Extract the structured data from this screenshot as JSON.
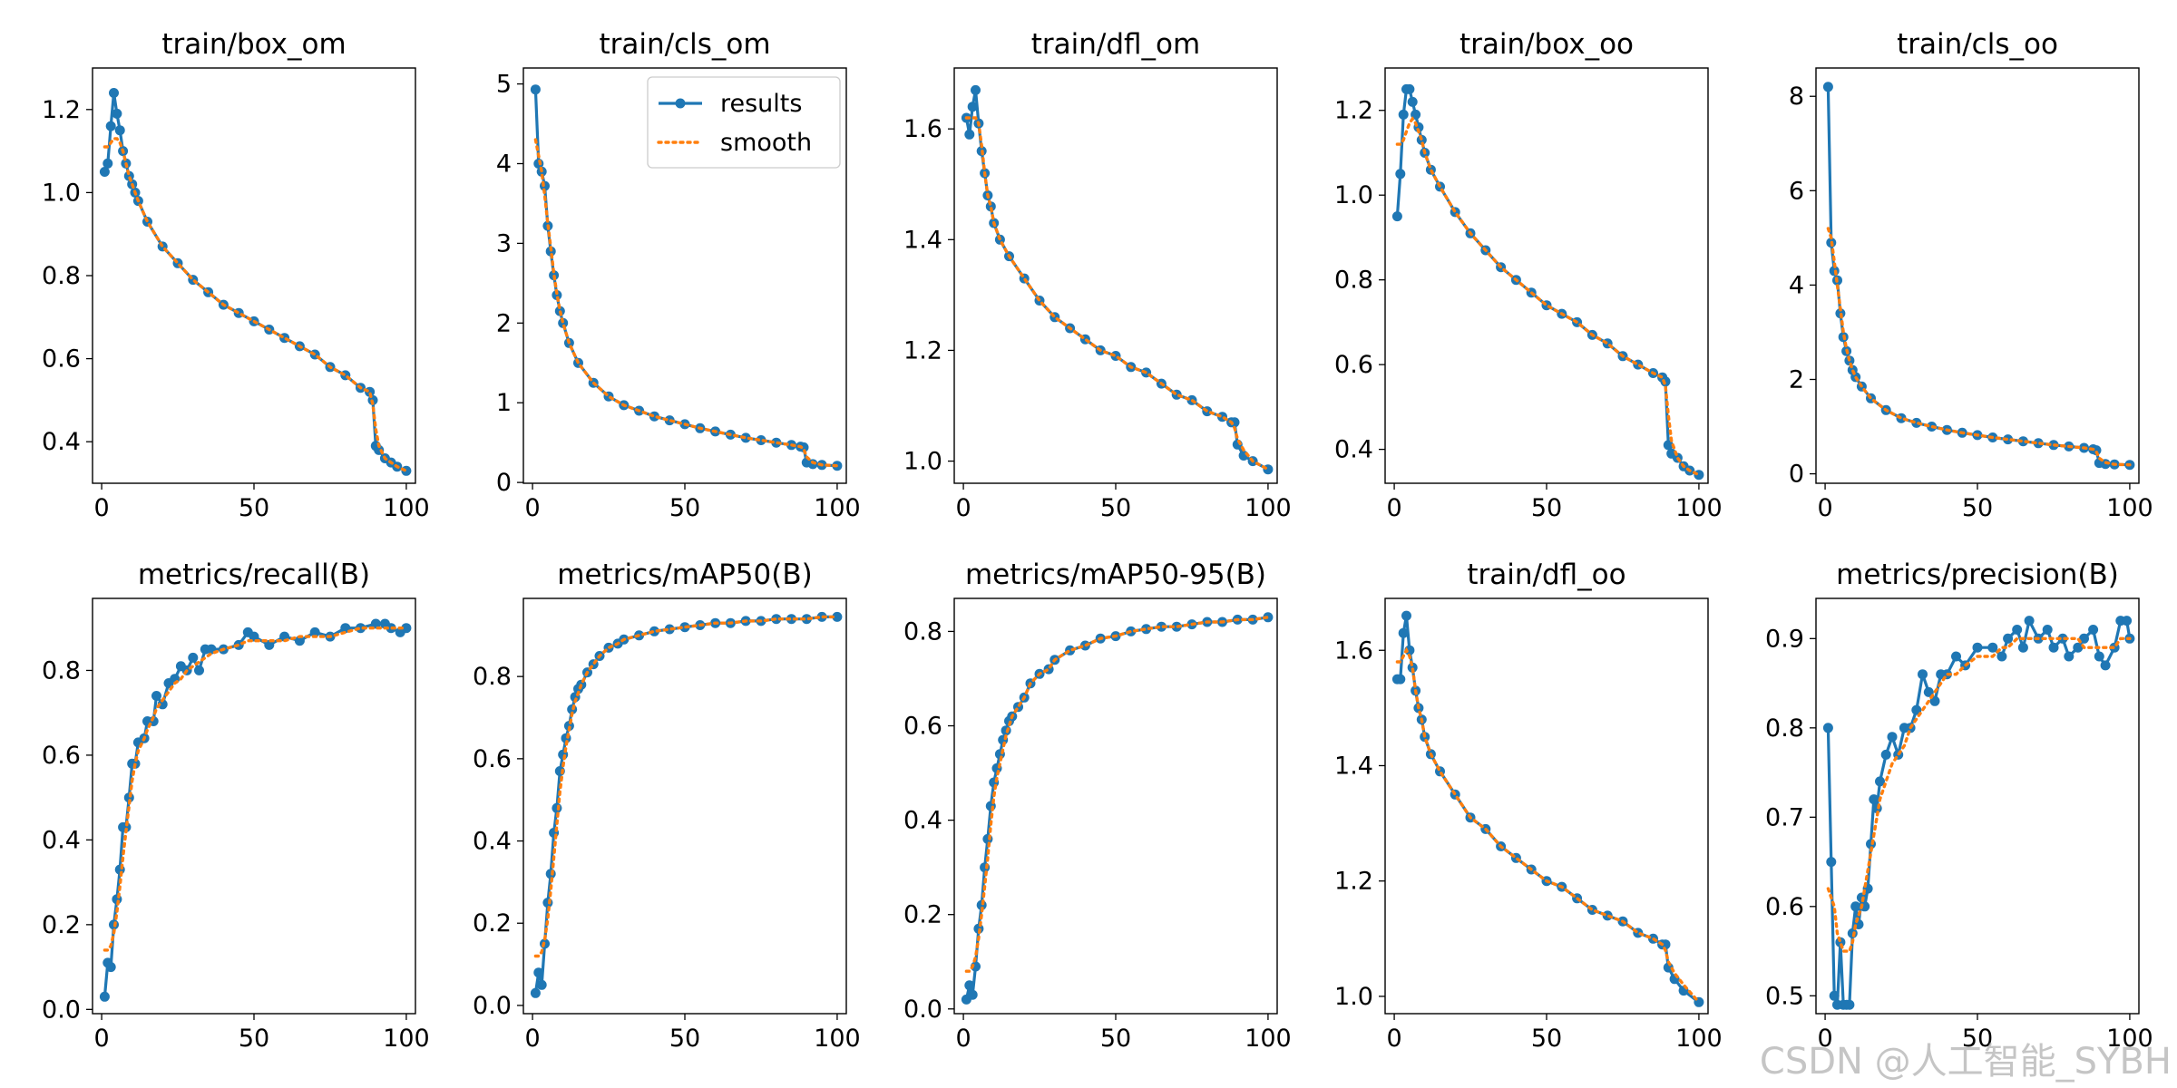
{
  "colors": {
    "results": "#1f77b4",
    "smooth": "#ff7f0e",
    "axis": "#000000"
  },
  "legend": {
    "results_label": "results",
    "smooth_label": "smooth",
    "placement": "upper-right of train/cls_om"
  },
  "watermark": "CSDN @人工智能_SYBH",
  "chart_data": [
    {
      "type": "line",
      "title": "train/box_om",
      "xlim": [
        -3,
        103
      ],
      "ylim": [
        0.3,
        1.3
      ],
      "xticks": [
        0,
        50,
        100
      ],
      "yticks": [
        0.4,
        0.6,
        0.8,
        1.0,
        1.2
      ],
      "ytick_labels": [
        "0.4",
        "0.6",
        "0.8",
        "1.0",
        "1.2"
      ],
      "legend": false,
      "x": [
        1,
        2,
        3,
        4,
        5,
        6,
        7,
        8,
        9,
        10,
        11,
        12,
        15,
        20,
        25,
        30,
        35,
        40,
        45,
        50,
        55,
        60,
        65,
        70,
        75,
        80,
        85,
        88,
        89,
        90,
        91,
        93,
        95,
        97,
        100
      ],
      "y": [
        1.05,
        1.07,
        1.16,
        1.24,
        1.19,
        1.15,
        1.1,
        1.07,
        1.04,
        1.02,
        1.0,
        0.98,
        0.93,
        0.87,
        0.83,
        0.79,
        0.76,
        0.73,
        0.71,
        0.69,
        0.67,
        0.65,
        0.63,
        0.61,
        0.58,
        0.56,
        0.53,
        0.52,
        0.5,
        0.39,
        0.38,
        0.36,
        0.35,
        0.34,
        0.33
      ],
      "smooth": [
        1.11,
        1.11,
        1.12,
        1.13,
        1.13,
        1.12,
        1.1,
        1.07,
        1.04,
        1.02,
        1.0,
        0.98,
        0.93,
        0.87,
        0.83,
        0.79,
        0.76,
        0.73,
        0.71,
        0.69,
        0.67,
        0.65,
        0.63,
        0.61,
        0.58,
        0.56,
        0.53,
        0.52,
        0.49,
        0.43,
        0.39,
        0.36,
        0.35,
        0.34,
        0.33
      ]
    },
    {
      "type": "line",
      "title": "train/cls_om",
      "xlim": [
        -3,
        103
      ],
      "ylim": [
        -0.01,
        5.2
      ],
      "xticks": [
        0,
        50,
        100
      ],
      "yticks": [
        0,
        1,
        2,
        3,
        4,
        5
      ],
      "ytick_labels": [
        "0",
        "1",
        "2",
        "3",
        "4",
        "5"
      ],
      "legend": true,
      "x": [
        1,
        2,
        3,
        4,
        5,
        6,
        7,
        8,
        9,
        10,
        12,
        15,
        20,
        25,
        30,
        35,
        40,
        45,
        50,
        55,
        60,
        65,
        70,
        75,
        80,
        85,
        88,
        89,
        90,
        92,
        95,
        100
      ],
      "y": [
        4.93,
        4.0,
        3.9,
        3.72,
        3.22,
        2.9,
        2.6,
        2.35,
        2.15,
        2.0,
        1.75,
        1.5,
        1.25,
        1.08,
        0.97,
        0.9,
        0.83,
        0.78,
        0.73,
        0.68,
        0.64,
        0.6,
        0.56,
        0.53,
        0.5,
        0.47,
        0.45,
        0.44,
        0.25,
        0.23,
        0.22,
        0.21
      ],
      "smooth": [
        4.3,
        4.1,
        3.9,
        3.6,
        3.25,
        2.95,
        2.62,
        2.37,
        2.16,
        2.0,
        1.75,
        1.5,
        1.25,
        1.08,
        0.97,
        0.9,
        0.83,
        0.78,
        0.73,
        0.68,
        0.64,
        0.6,
        0.56,
        0.53,
        0.5,
        0.47,
        0.45,
        0.42,
        0.32,
        0.25,
        0.22,
        0.21
      ]
    },
    {
      "type": "line",
      "title": "train/dfl_om",
      "xlim": [
        -3,
        103
      ],
      "ylim": [
        0.96,
        1.71
      ],
      "xticks": [
        0,
        50,
        100
      ],
      "yticks": [
        1.0,
        1.2,
        1.4,
        1.6
      ],
      "ytick_labels": [
        "1.0",
        "1.2",
        "1.4",
        "1.6"
      ],
      "legend": false,
      "x": [
        1,
        2,
        3,
        4,
        5,
        6,
        7,
        8,
        9,
        10,
        12,
        15,
        20,
        25,
        30,
        35,
        40,
        45,
        50,
        55,
        60,
        65,
        70,
        75,
        80,
        85,
        88,
        89,
        90,
        92,
        95,
        100
      ],
      "y": [
        1.62,
        1.59,
        1.64,
        1.67,
        1.61,
        1.56,
        1.52,
        1.48,
        1.46,
        1.43,
        1.4,
        1.37,
        1.33,
        1.29,
        1.26,
        1.24,
        1.22,
        1.2,
        1.19,
        1.17,
        1.16,
        1.14,
        1.12,
        1.11,
        1.09,
        1.08,
        1.07,
        1.07,
        1.03,
        1.01,
        1.0,
        0.985
      ],
      "smooth": [
        1.62,
        1.62,
        1.62,
        1.62,
        1.61,
        1.57,
        1.52,
        1.48,
        1.46,
        1.43,
        1.4,
        1.37,
        1.33,
        1.29,
        1.26,
        1.24,
        1.22,
        1.2,
        1.19,
        1.17,
        1.16,
        1.14,
        1.12,
        1.11,
        1.09,
        1.08,
        1.07,
        1.06,
        1.04,
        1.02,
        1.0,
        0.985
      ]
    },
    {
      "type": "line",
      "title": "train/box_oo",
      "xlim": [
        -3,
        103
      ],
      "ylim": [
        0.32,
        1.3
      ],
      "xticks": [
        0,
        50,
        100
      ],
      "yticks": [
        0.4,
        0.6,
        0.8,
        1.0,
        1.2
      ],
      "ytick_labels": [
        "0.4",
        "0.6",
        "0.8",
        "1.0",
        "1.2"
      ],
      "legend": false,
      "x": [
        1,
        2,
        3,
        4,
        5,
        6,
        7,
        8,
        9,
        10,
        12,
        15,
        20,
        25,
        30,
        35,
        40,
        45,
        50,
        55,
        60,
        65,
        70,
        75,
        80,
        85,
        88,
        89,
        90,
        91,
        93,
        95,
        97,
        100
      ],
      "y": [
        0.95,
        1.05,
        1.19,
        1.25,
        1.25,
        1.22,
        1.19,
        1.16,
        1.13,
        1.1,
        1.06,
        1.02,
        0.96,
        0.91,
        0.87,
        0.83,
        0.8,
        0.77,
        0.74,
        0.72,
        0.7,
        0.67,
        0.65,
        0.62,
        0.6,
        0.58,
        0.57,
        0.56,
        0.41,
        0.39,
        0.38,
        0.36,
        0.35,
        0.34
      ],
      "smooth": [
        1.12,
        1.12,
        1.13,
        1.15,
        1.17,
        1.18,
        1.17,
        1.15,
        1.13,
        1.1,
        1.06,
        1.02,
        0.96,
        0.91,
        0.87,
        0.83,
        0.8,
        0.77,
        0.74,
        0.72,
        0.7,
        0.67,
        0.65,
        0.62,
        0.6,
        0.58,
        0.57,
        0.55,
        0.48,
        0.42,
        0.38,
        0.36,
        0.35,
        0.34
      ]
    },
    {
      "type": "line",
      "title": "train/cls_oo",
      "xlim": [
        -3,
        103
      ],
      "ylim": [
        -0.2,
        8.6
      ],
      "xticks": [
        0,
        50,
        100
      ],
      "yticks": [
        0,
        2,
        4,
        6,
        8
      ],
      "ytick_labels": [
        "0",
        "2",
        "4",
        "6",
        "8"
      ],
      "legend": false,
      "x": [
        1,
        2,
        3,
        4,
        5,
        6,
        7,
        8,
        9,
        10,
        12,
        15,
        20,
        25,
        30,
        35,
        40,
        45,
        50,
        55,
        60,
        65,
        70,
        75,
        80,
        85,
        88,
        89,
        90,
        92,
        95,
        100
      ],
      "y": [
        8.2,
        4.9,
        4.3,
        4.1,
        3.4,
        2.9,
        2.6,
        2.4,
        2.2,
        2.05,
        1.85,
        1.6,
        1.35,
        1.18,
        1.08,
        1.0,
        0.93,
        0.87,
        0.82,
        0.77,
        0.73,
        0.69,
        0.65,
        0.61,
        0.58,
        0.55,
        0.52,
        0.5,
        0.23,
        0.21,
        0.2,
        0.19
      ],
      "smooth": [
        5.2,
        5.0,
        4.5,
        4.0,
        3.5,
        3.0,
        2.65,
        2.4,
        2.2,
        2.05,
        1.85,
        1.6,
        1.35,
        1.18,
        1.08,
        1.0,
        0.93,
        0.87,
        0.82,
        0.77,
        0.73,
        0.69,
        0.65,
        0.61,
        0.58,
        0.55,
        0.52,
        0.47,
        0.33,
        0.24,
        0.2,
        0.19
      ]
    },
    {
      "type": "line",
      "title": "metrics/recall(B)",
      "xlim": [
        -3,
        103
      ],
      "ylim": [
        -0.01,
        0.97
      ],
      "xticks": [
        0,
        50,
        100
      ],
      "yticks": [
        0.0,
        0.2,
        0.4,
        0.6,
        0.8
      ],
      "ytick_labels": [
        "0.0",
        "0.2",
        "0.4",
        "0.6",
        "0.8"
      ],
      "legend": false,
      "x": [
        1,
        2,
        3,
        4,
        5,
        6,
        7,
        8,
        9,
        10,
        11,
        12,
        14,
        15,
        17,
        18,
        20,
        22,
        24,
        26,
        28,
        30,
        32,
        34,
        36,
        40,
        45,
        48,
        50,
        55,
        60,
        65,
        70,
        75,
        80,
        85,
        90,
        93,
        95,
        98,
        100
      ],
      "y": [
        0.03,
        0.11,
        0.1,
        0.2,
        0.26,
        0.33,
        0.43,
        0.43,
        0.5,
        0.58,
        0.58,
        0.63,
        0.64,
        0.68,
        0.68,
        0.74,
        0.72,
        0.77,
        0.78,
        0.81,
        0.8,
        0.83,
        0.8,
        0.85,
        0.85,
        0.85,
        0.86,
        0.89,
        0.88,
        0.86,
        0.88,
        0.87,
        0.89,
        0.88,
        0.9,
        0.9,
        0.91,
        0.91,
        0.9,
        0.89,
        0.9
      ],
      "smooth": [
        0.14,
        0.14,
        0.15,
        0.18,
        0.23,
        0.29,
        0.36,
        0.42,
        0.48,
        0.54,
        0.58,
        0.61,
        0.64,
        0.66,
        0.69,
        0.71,
        0.73,
        0.75,
        0.77,
        0.78,
        0.8,
        0.81,
        0.82,
        0.83,
        0.84,
        0.85,
        0.86,
        0.87,
        0.87,
        0.87,
        0.87,
        0.88,
        0.88,
        0.88,
        0.89,
        0.9,
        0.9,
        0.9,
        0.9,
        0.9,
        0.9
      ]
    },
    {
      "type": "line",
      "title": "metrics/mAP50(B)",
      "xlim": [
        -3,
        103
      ],
      "ylim": [
        -0.02,
        0.99
      ],
      "xticks": [
        0,
        50,
        100
      ],
      "yticks": [
        0.0,
        0.2,
        0.4,
        0.6,
        0.8
      ],
      "ytick_labels": [
        "0.0",
        "0.2",
        "0.4",
        "0.6",
        "0.8"
      ],
      "legend": false,
      "x": [
        1,
        2,
        3,
        4,
        5,
        6,
        7,
        8,
        9,
        10,
        11,
        12,
        13,
        14,
        15,
        16,
        18,
        20,
        22,
        25,
        28,
        30,
        35,
        40,
        45,
        50,
        55,
        60,
        65,
        70,
        75,
        80,
        85,
        90,
        95,
        100
      ],
      "y": [
        0.03,
        0.08,
        0.05,
        0.15,
        0.25,
        0.32,
        0.42,
        0.48,
        0.57,
        0.61,
        0.65,
        0.68,
        0.72,
        0.75,
        0.77,
        0.78,
        0.81,
        0.83,
        0.85,
        0.87,
        0.88,
        0.89,
        0.9,
        0.91,
        0.915,
        0.92,
        0.925,
        0.93,
        0.93,
        0.935,
        0.935,
        0.94,
        0.94,
        0.94,
        0.945,
        0.945
      ],
      "smooth": [
        0.12,
        0.12,
        0.13,
        0.16,
        0.21,
        0.28,
        0.36,
        0.44,
        0.52,
        0.58,
        0.63,
        0.67,
        0.71,
        0.74,
        0.76,
        0.78,
        0.81,
        0.83,
        0.85,
        0.87,
        0.88,
        0.89,
        0.9,
        0.91,
        0.915,
        0.92,
        0.925,
        0.93,
        0.93,
        0.935,
        0.935,
        0.94,
        0.94,
        0.94,
        0.945,
        0.945
      ]
    },
    {
      "type": "line",
      "title": "metrics/mAP50-95(B)",
      "xlim": [
        -3,
        103
      ],
      "ylim": [
        -0.01,
        0.87
      ],
      "xticks": [
        0,
        50,
        100
      ],
      "yticks": [
        0.0,
        0.2,
        0.4,
        0.6,
        0.8
      ],
      "ytick_labels": [
        "0.0",
        "0.2",
        "0.4",
        "0.6",
        "0.8"
      ],
      "legend": false,
      "x": [
        1,
        2,
        3,
        4,
        5,
        6,
        7,
        8,
        9,
        10,
        11,
        12,
        13,
        14,
        15,
        16,
        18,
        20,
        22,
        25,
        28,
        30,
        35,
        40,
        45,
        50,
        55,
        60,
        65,
        70,
        75,
        80,
        85,
        90,
        95,
        100
      ],
      "y": [
        0.02,
        0.05,
        0.03,
        0.09,
        0.17,
        0.22,
        0.3,
        0.36,
        0.43,
        0.48,
        0.51,
        0.54,
        0.57,
        0.59,
        0.61,
        0.62,
        0.64,
        0.66,
        0.69,
        0.71,
        0.72,
        0.74,
        0.76,
        0.77,
        0.785,
        0.79,
        0.8,
        0.805,
        0.81,
        0.81,
        0.815,
        0.82,
        0.82,
        0.825,
        0.825,
        0.83
      ],
      "smooth": [
        0.08,
        0.08,
        0.09,
        0.11,
        0.15,
        0.2,
        0.26,
        0.32,
        0.39,
        0.45,
        0.49,
        0.52,
        0.55,
        0.58,
        0.6,
        0.62,
        0.64,
        0.66,
        0.69,
        0.71,
        0.72,
        0.74,
        0.76,
        0.77,
        0.785,
        0.79,
        0.8,
        0.805,
        0.81,
        0.81,
        0.815,
        0.82,
        0.82,
        0.825,
        0.825,
        0.83
      ]
    },
    {
      "type": "line",
      "title": "train/dfl_oo",
      "xlim": [
        -3,
        103
      ],
      "ylim": [
        0.97,
        1.69
      ],
      "xticks": [
        0,
        50,
        100
      ],
      "yticks": [
        1.0,
        1.2,
        1.4,
        1.6
      ],
      "ytick_labels": [
        "1.0",
        "1.2",
        "1.4",
        "1.6"
      ],
      "legend": false,
      "x": [
        1,
        2,
        3,
        4,
        5,
        6,
        7,
        8,
        9,
        10,
        12,
        15,
        20,
        25,
        30,
        35,
        40,
        45,
        50,
        55,
        60,
        65,
        70,
        75,
        80,
        85,
        88,
        89,
        90,
        92,
        95,
        100
      ],
      "y": [
        1.55,
        1.55,
        1.63,
        1.66,
        1.6,
        1.57,
        1.53,
        1.5,
        1.48,
        1.45,
        1.42,
        1.39,
        1.35,
        1.31,
        1.29,
        1.26,
        1.24,
        1.22,
        1.2,
        1.19,
        1.17,
        1.15,
        1.14,
        1.13,
        1.11,
        1.1,
        1.09,
        1.09,
        1.05,
        1.03,
        1.01,
        0.99
      ],
      "smooth": [
        1.58,
        1.58,
        1.59,
        1.6,
        1.59,
        1.57,
        1.53,
        1.5,
        1.48,
        1.45,
        1.42,
        1.39,
        1.35,
        1.31,
        1.29,
        1.26,
        1.24,
        1.22,
        1.2,
        1.19,
        1.17,
        1.15,
        1.14,
        1.13,
        1.11,
        1.1,
        1.09,
        1.08,
        1.06,
        1.04,
        1.02,
        0.99
      ]
    },
    {
      "type": "line",
      "title": "metrics/precision(B)",
      "xlim": [
        -3,
        103
      ],
      "ylim": [
        0.48,
        0.945
      ],
      "xticks": [
        0,
        50,
        100
      ],
      "yticks": [
        0.5,
        0.6,
        0.7,
        0.8,
        0.9
      ],
      "ytick_labels": [
        "0.5",
        "0.6",
        "0.7",
        "0.8",
        "0.9"
      ],
      "legend": false,
      "x": [
        1,
        2,
        3,
        4,
        5,
        6,
        7,
        8,
        9,
        10,
        11,
        12,
        13,
        14,
        15,
        16,
        17,
        18,
        20,
        22,
        24,
        26,
        28,
        30,
        32,
        34,
        36,
        38,
        40,
        43,
        46,
        50,
        55,
        58,
        60,
        63,
        65,
        67,
        70,
        73,
        75,
        78,
        80,
        83,
        85,
        88,
        90,
        92,
        95,
        97,
        99,
        100
      ],
      "y": [
        0.8,
        0.65,
        0.5,
        0.49,
        0.56,
        0.49,
        0.49,
        0.49,
        0.57,
        0.6,
        0.58,
        0.61,
        0.6,
        0.62,
        0.67,
        0.72,
        0.71,
        0.74,
        0.77,
        0.79,
        0.77,
        0.8,
        0.8,
        0.82,
        0.86,
        0.84,
        0.83,
        0.86,
        0.86,
        0.88,
        0.87,
        0.89,
        0.89,
        0.88,
        0.9,
        0.91,
        0.89,
        0.92,
        0.9,
        0.91,
        0.89,
        0.9,
        0.88,
        0.89,
        0.9,
        0.91,
        0.88,
        0.87,
        0.89,
        0.92,
        0.92,
        0.9
      ],
      "smooth": [
        0.62,
        0.61,
        0.6,
        0.57,
        0.56,
        0.55,
        0.55,
        0.55,
        0.56,
        0.58,
        0.59,
        0.6,
        0.62,
        0.64,
        0.66,
        0.68,
        0.7,
        0.72,
        0.74,
        0.76,
        0.77,
        0.78,
        0.8,
        0.81,
        0.82,
        0.83,
        0.84,
        0.85,
        0.86,
        0.86,
        0.87,
        0.88,
        0.88,
        0.89,
        0.89,
        0.9,
        0.9,
        0.9,
        0.9,
        0.9,
        0.9,
        0.9,
        0.9,
        0.9,
        0.89,
        0.89,
        0.89,
        0.89,
        0.89,
        0.9,
        0.9,
        0.9
      ]
    }
  ]
}
